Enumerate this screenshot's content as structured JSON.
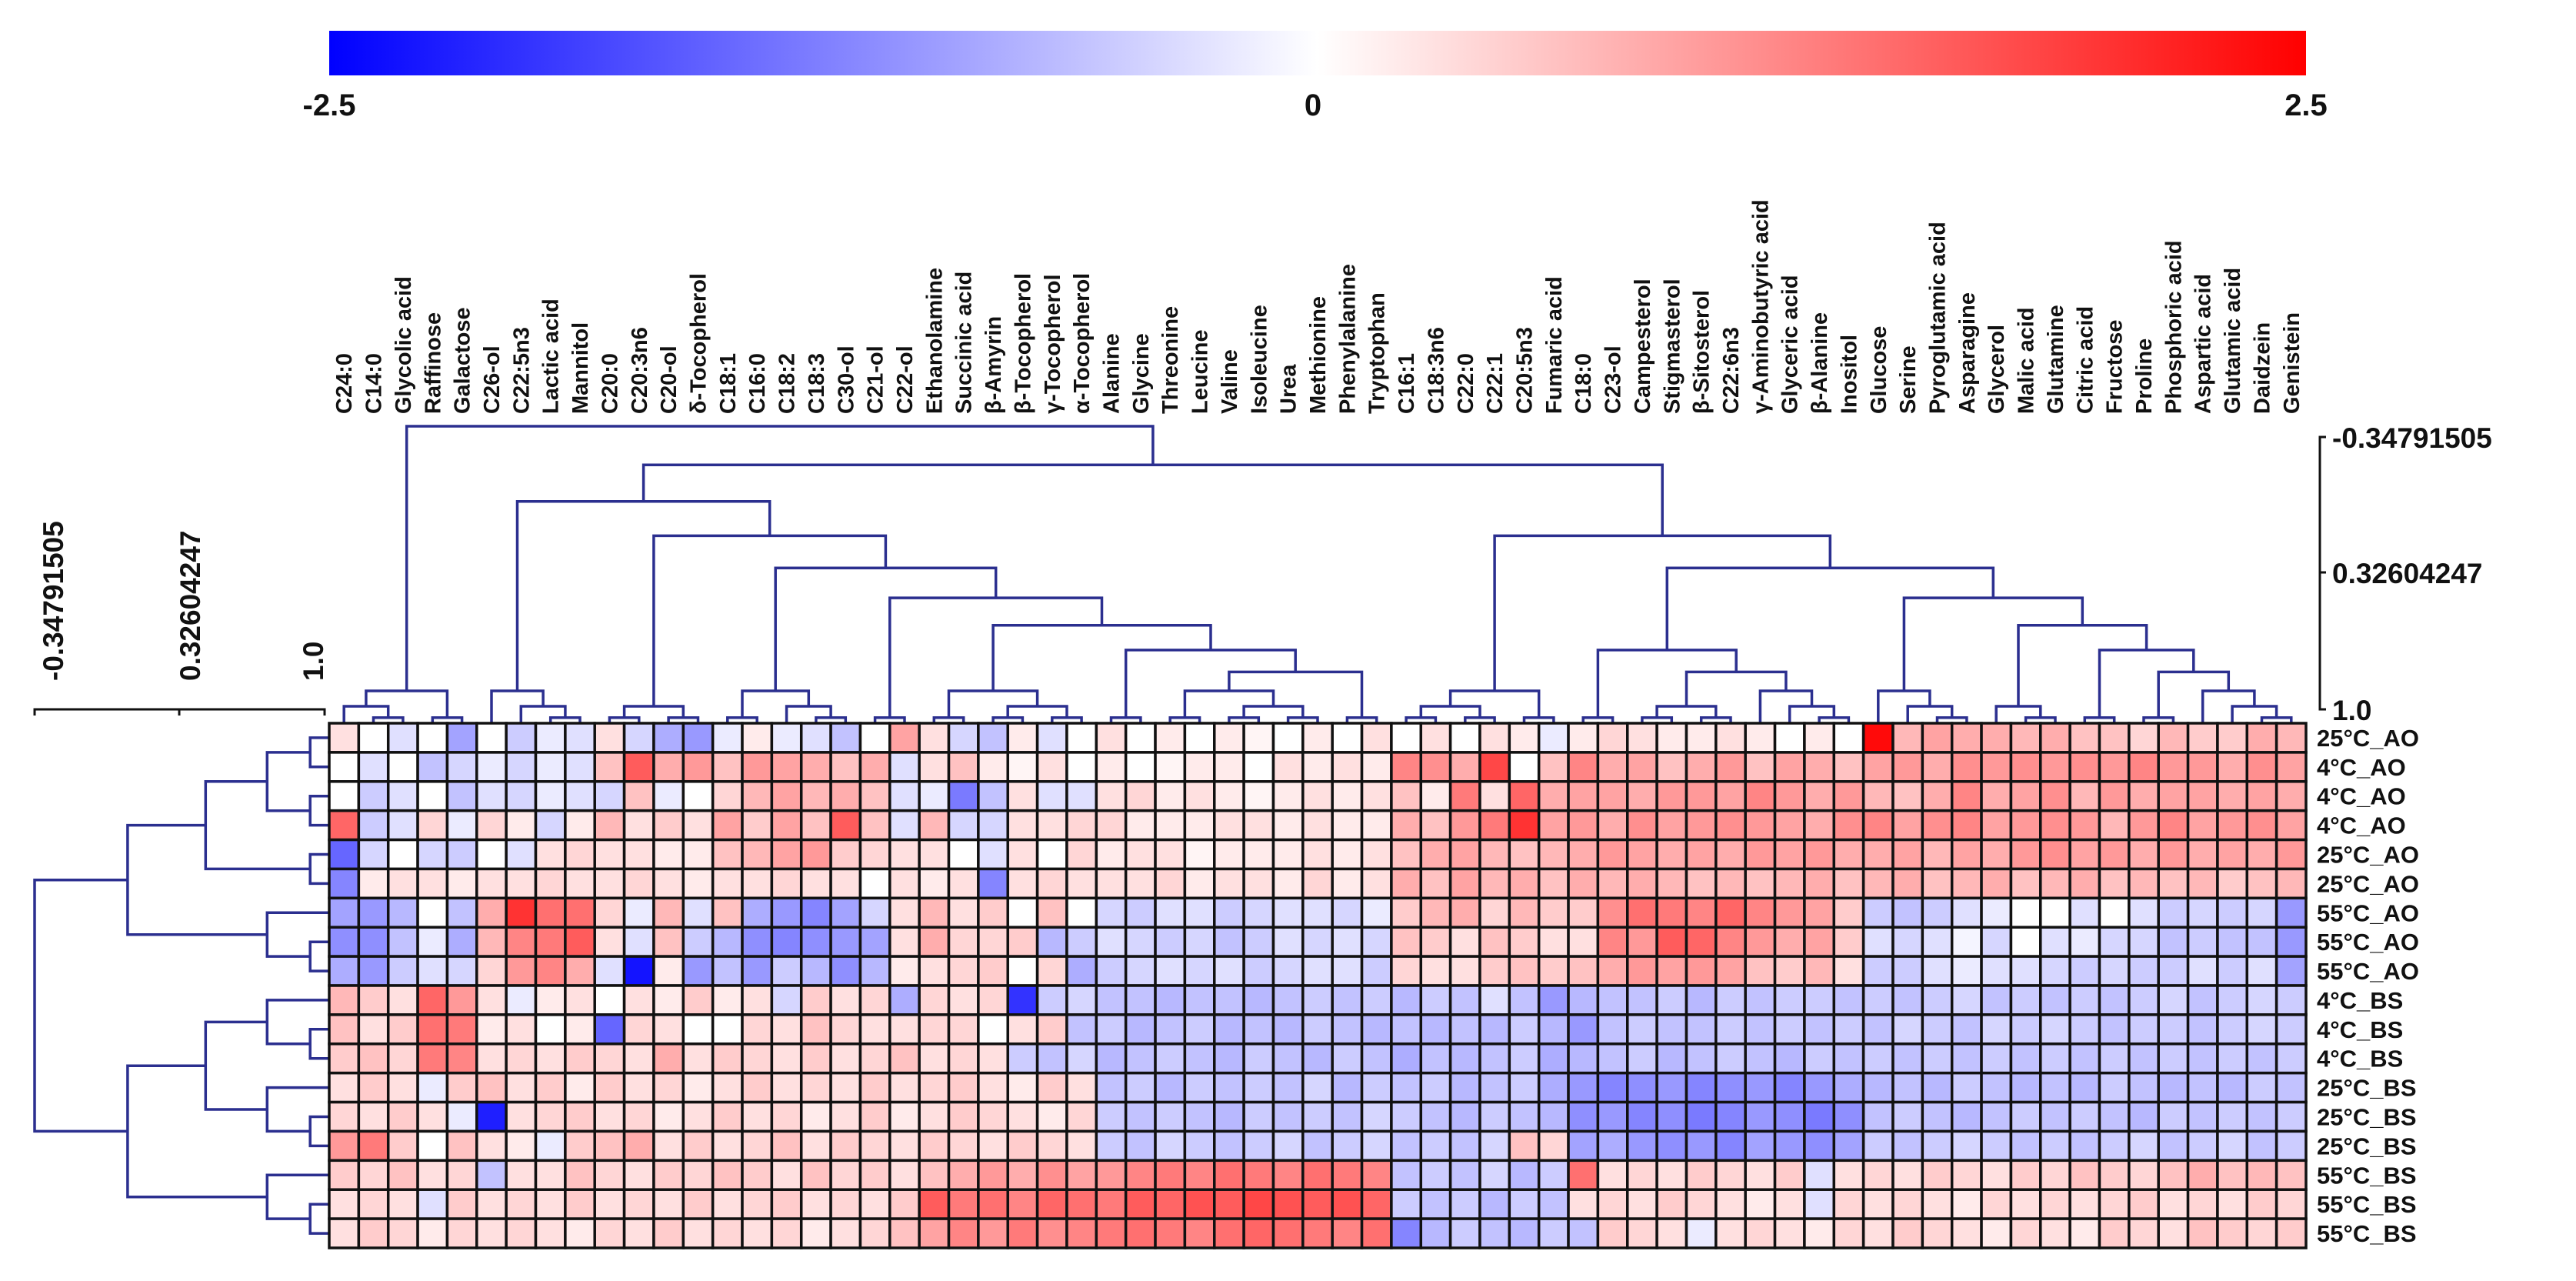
{
  "chart_data": {
    "type": "heatmap",
    "title": "",
    "color_scale": {
      "min": -2.5,
      "mid": 0,
      "max": 2.5,
      "tick_labels": [
        "-2.5",
        "0",
        "2.5"
      ],
      "low_color": "#0000ff",
      "mid_color": "#ffffff",
      "high_color": "#ff0000"
    },
    "columns": [
      "C24:0",
      "C14:0",
      "Glycolic acid",
      "Raffinose",
      "Galactose",
      "C26-ol",
      "C22:5n3",
      "Lactic acid",
      "Mannitol",
      "C20:0",
      "C20:3n6",
      "C20-ol",
      "δ-Tocopherol",
      "C18:1",
      "C16:0",
      "C18:2",
      "C18:3",
      "C30-ol",
      "C21-ol",
      "C22-ol",
      "Ethanolamine",
      "Succinic acid",
      "β-Amyrin",
      "β-Tocopherol",
      "γ-Tocopherol",
      "α-Tocopherol",
      "Alanine",
      "Glycine",
      "Threonine",
      "Leucine",
      "Valine",
      "Isoleucine",
      "Urea",
      "Methionine",
      "Phenylalanine",
      "Tryptophan",
      "C16:1",
      "C18:3n6",
      "C22:0",
      "C22:1",
      "C20:5n3",
      "Fumaric acid",
      "C18:0",
      "C23-ol",
      "Campesterol",
      "Stigmasterol",
      "β-Sitosterol",
      "C22:6n3",
      "γ-Aminobutyric acid",
      "Glyceric acid",
      "β-Alanine",
      "Inositol",
      "Glucose",
      "Serine",
      "Pyroglutamic acid",
      "Asparagine",
      "Glycerol",
      "Malic acid",
      "Glutamine",
      "Citric acid",
      "Fructose",
      "Proline",
      "Phosphoric acid",
      "Aspartic acid",
      "Glutamic acid",
      "Daidzein",
      "Genistein"
    ],
    "rows": [
      "25°C_AO",
      "4°C_AO",
      "4°C_AO",
      "4°C_AO",
      "25°C_AO",
      "25°C_AO",
      "55°C_AO",
      "55°C_AO",
      "55°C_AO",
      "4°C_BS",
      "4°C_BS",
      "4°C_BS",
      "25°C_BS",
      "25°C_BS",
      "25°C_BS",
      "55°C_BS",
      "55°C_BS",
      "55°C_BS"
    ],
    "values": [
      [
        0.3,
        0.0,
        -0.3,
        0.0,
        -0.9,
        0.0,
        -0.5,
        -0.2,
        -0.3,
        0.3,
        -0.4,
        -0.8,
        -1.0,
        -0.2,
        0.2,
        -0.2,
        -0.3,
        -0.6,
        0.0,
        0.9,
        0.3,
        -0.4,
        -0.6,
        0.2,
        -0.3,
        0.0,
        0.3,
        0.0,
        0.2,
        0.0,
        0.2,
        0.1,
        0.0,
        0.2,
        0.0,
        0.3,
        0.0,
        0.3,
        0.0,
        0.3,
        0.2,
        -0.2,
        0.2,
        0.4,
        0.3,
        0.2,
        0.2,
        0.3,
        0.2,
        0.0,
        0.2,
        0.0,
        2.4,
        0.7,
        0.9,
        0.8,
        0.8,
        0.7,
        0.8,
        0.6,
        0.6,
        0.4,
        0.7,
        0.5,
        0.5,
        0.8,
        0.7
      ],
      [
        0.0,
        -0.3,
        0.0,
        -0.6,
        -0.4,
        -0.2,
        -0.4,
        -0.2,
        -0.3,
        0.6,
        1.6,
        0.8,
        1.0,
        0.6,
        1.0,
        0.9,
        0.8,
        0.6,
        0.8,
        -0.3,
        0.3,
        0.6,
        0.2,
        0.1,
        0.3,
        0.0,
        0.2,
        0.0,
        0.1,
        0.2,
        0.2,
        0.0,
        0.3,
        0.2,
        0.3,
        0.2,
        1.2,
        1.1,
        0.8,
        1.8,
        0.0,
        0.6,
        1.2,
        0.8,
        0.9,
        0.6,
        0.8,
        1.0,
        0.6,
        0.9,
        0.8,
        0.6,
        0.9,
        1.0,
        0.8,
        1.1,
        1.0,
        1.1,
        1.0,
        1.1,
        1.0,
        1.2,
        1.0,
        1.0,
        0.8,
        1.1,
        0.9
      ],
      [
        0.0,
        -0.5,
        -0.3,
        0.0,
        -0.6,
        -0.3,
        -0.4,
        -0.2,
        -0.3,
        -0.4,
        0.6,
        -0.2,
        0.0,
        0.4,
        0.7,
        0.9,
        0.7,
        0.8,
        0.6,
        -0.3,
        -0.2,
        -1.3,
        -0.6,
        0.3,
        -0.3,
        -0.3,
        0.3,
        0.4,
        0.2,
        0.3,
        0.2,
        0.1,
        0.2,
        0.3,
        0.2,
        0.3,
        0.6,
        0.2,
        1.3,
        0.3,
        1.5,
        0.8,
        0.9,
        0.9,
        0.8,
        1.0,
        1.0,
        0.9,
        1.2,
        1.0,
        0.8,
        1.0,
        0.7,
        0.6,
        0.8,
        1.2,
        0.8,
        0.9,
        1.1,
        0.7,
        1.0,
        0.8,
        0.9,
        0.9,
        0.8,
        0.9,
        0.8
      ],
      [
        1.5,
        -0.5,
        -0.3,
        0.4,
        -0.2,
        0.4,
        0.2,
        -0.4,
        0.2,
        0.7,
        0.3,
        0.5,
        0.3,
        0.9,
        0.5,
        0.9,
        0.6,
        1.6,
        0.6,
        -0.3,
        0.7,
        -0.4,
        -0.4,
        0.3,
        0.3,
        0.4,
        0.4,
        0.2,
        0.2,
        0.2,
        0.3,
        0.3,
        0.2,
        0.3,
        0.2,
        0.2,
        0.8,
        0.6,
        1.0,
        1.3,
        2.0,
        0.9,
        1.0,
        0.8,
        1.1,
        0.9,
        1.0,
        1.1,
        1.0,
        0.9,
        0.8,
        1.1,
        1.2,
        0.9,
        1.1,
        1.2,
        0.9,
        1.0,
        1.1,
        1.0,
        0.7,
        1.0,
        1.2,
        0.9,
        1.0,
        1.1,
        0.9
      ],
      [
        -1.5,
        -0.4,
        0.0,
        -0.4,
        -0.5,
        0.0,
        -0.3,
        0.3,
        0.4,
        0.3,
        0.3,
        0.2,
        0.2,
        0.6,
        0.7,
        0.9,
        1.0,
        0.5,
        0.4,
        0.3,
        0.3,
        0.0,
        -0.3,
        0.3,
        0.0,
        0.4,
        0.2,
        0.3,
        0.3,
        0.1,
        0.2,
        0.2,
        0.2,
        0.3,
        0.2,
        0.3,
        0.6,
        0.8,
        0.9,
        0.7,
        0.6,
        0.7,
        0.8,
        1.0,
        0.9,
        0.8,
        0.9,
        0.8,
        1.0,
        0.9,
        1.0,
        0.8,
        0.8,
        0.9,
        0.7,
        0.9,
        0.8,
        1.0,
        1.1,
        0.9,
        1.0,
        0.8,
        1.0,
        0.8,
        0.9,
        0.8,
        1.0
      ],
      [
        -1.2,
        0.2,
        0.3,
        0.3,
        0.2,
        0.3,
        0.3,
        0.4,
        0.3,
        0.3,
        0.4,
        0.3,
        0.2,
        0.3,
        0.3,
        0.4,
        0.3,
        0.3,
        0.0,
        0.3,
        0.2,
        0.3,
        -1.2,
        0.3,
        0.4,
        0.3,
        0.3,
        0.3,
        0.4,
        0.2,
        0.3,
        0.3,
        0.2,
        0.4,
        0.2,
        0.3,
        0.8,
        0.6,
        0.9,
        0.7,
        0.8,
        0.6,
        0.8,
        0.7,
        0.8,
        0.7,
        0.6,
        0.7,
        0.6,
        0.7,
        0.8,
        0.6,
        0.7,
        0.8,
        0.6,
        0.7,
        0.8,
        0.6,
        0.7,
        0.8,
        0.6,
        0.7,
        0.6,
        0.7,
        0.5,
        0.6,
        0.7
      ],
      [
        -0.9,
        -1.0,
        -0.7,
        0.0,
        -0.6,
        0.8,
        2.0,
        1.4,
        1.4,
        0.4,
        -0.2,
        0.7,
        -0.3,
        0.6,
        -0.8,
        -1.0,
        -1.2,
        -0.9,
        -0.4,
        0.3,
        0.7,
        0.3,
        0.5,
        0.0,
        0.6,
        0.0,
        -0.4,
        -0.5,
        -0.3,
        -0.3,
        -0.5,
        -0.4,
        -0.3,
        -0.3,
        -0.4,
        -0.2,
        0.5,
        0.7,
        0.8,
        0.4,
        0.7,
        0.5,
        0.5,
        1.1,
        1.4,
        1.3,
        1.2,
        1.5,
        1.2,
        1.0,
        0.9,
        0.5,
        -0.5,
        -0.6,
        -0.5,
        -0.3,
        -0.2,
        0.0,
        0.0,
        -0.3,
        0.0,
        -0.3,
        -0.5,
        -0.4,
        -0.5,
        -0.4,
        -1.0
      ],
      [
        -1.1,
        -1.1,
        -0.6,
        -0.2,
        -0.8,
        0.7,
        1.2,
        1.3,
        1.6,
        0.3,
        -0.3,
        0.6,
        -0.5,
        -0.7,
        -1.1,
        -1.2,
        -1.1,
        -1.0,
        -0.9,
        0.3,
        0.8,
        0.4,
        0.4,
        0.5,
        -0.7,
        -0.5,
        -0.3,
        -0.4,
        -0.5,
        -0.4,
        -0.6,
        -0.5,
        -0.3,
        -0.4,
        -0.3,
        -0.4,
        0.6,
        0.5,
        0.3,
        0.6,
        0.5,
        0.3,
        0.3,
        1.2,
        1.0,
        1.6,
        1.5,
        1.2,
        1.0,
        0.8,
        0.9,
        0.5,
        -0.3,
        -0.4,
        -0.3,
        -0.1,
        -0.4,
        0.0,
        -0.3,
        -0.2,
        -0.4,
        -0.4,
        -0.6,
        -0.5,
        -0.6,
        -0.6,
        -1.0
      ],
      [
        -0.8,
        -1.0,
        -0.5,
        -0.3,
        -0.4,
        0.4,
        1.0,
        1.2,
        0.8,
        -0.3,
        -2.3,
        0.2,
        -1.0,
        -0.6,
        -1.0,
        -0.5,
        -0.7,
        -1.1,
        -0.7,
        0.2,
        0.3,
        0.4,
        0.5,
        0.0,
        0.4,
        -0.8,
        -0.5,
        -0.4,
        -0.3,
        -0.4,
        -0.3,
        -0.5,
        -0.4,
        -0.3,
        -0.3,
        -0.5,
        0.4,
        0.3,
        0.3,
        0.5,
        0.6,
        0.5,
        0.6,
        0.8,
        1.0,
        0.9,
        1.0,
        0.9,
        0.6,
        0.5,
        0.7,
        0.3,
        -0.5,
        -0.5,
        -0.3,
        -0.2,
        -0.3,
        -0.3,
        -0.4,
        -0.5,
        -0.4,
        -0.5,
        -0.5,
        -0.3,
        -0.5,
        -0.3,
        -0.9
      ],
      [
        0.7,
        0.5,
        0.3,
        1.5,
        1.0,
        0.3,
        -0.2,
        0.2,
        0.3,
        0.0,
        0.3,
        0.2,
        0.5,
        0.2,
        0.3,
        -0.4,
        0.5,
        0.3,
        0.4,
        -0.8,
        0.4,
        0.3,
        0.4,
        -2.0,
        -0.5,
        -0.4,
        -0.6,
        -0.6,
        -0.7,
        -0.6,
        -0.6,
        -0.7,
        -0.6,
        -0.5,
        -0.6,
        -0.5,
        -0.7,
        -0.5,
        -0.6,
        -0.3,
        -0.6,
        -1.0,
        -0.7,
        -0.6,
        -0.6,
        -0.5,
        -0.7,
        -0.5,
        -0.6,
        -0.5,
        -0.5,
        -0.6,
        -0.5,
        -0.6,
        -0.5,
        -0.4,
        -0.6,
        -0.5,
        -0.6,
        -0.5,
        -0.6,
        -0.5,
        -0.4,
        -0.6,
        -0.5,
        -0.4,
        -0.5
      ],
      [
        0.6,
        0.3,
        0.5,
        1.4,
        1.3,
        0.2,
        0.3,
        0.0,
        0.2,
        -1.5,
        0.4,
        0.3,
        0.0,
        0.0,
        0.4,
        0.3,
        0.6,
        0.4,
        0.3,
        0.3,
        0.4,
        0.4,
        0.0,
        0.3,
        0.5,
        -0.6,
        -0.5,
        -0.7,
        -0.6,
        -0.5,
        -0.7,
        -0.6,
        -0.7,
        -0.5,
        -0.6,
        -0.7,
        -0.6,
        -0.7,
        -0.6,
        -0.7,
        -0.5,
        -0.7,
        -1.0,
        -0.6,
        -0.5,
        -0.6,
        -0.6,
        -0.5,
        -0.6,
        -0.5,
        -0.6,
        -0.5,
        -0.6,
        -0.4,
        -0.5,
        -0.6,
        -0.4,
        -0.5,
        -0.4,
        -0.5,
        -0.6,
        -0.5,
        -0.5,
        -0.6,
        -0.5,
        -0.4,
        -0.5
      ],
      [
        0.5,
        0.6,
        0.4,
        1.3,
        1.2,
        0.3,
        0.4,
        0.3,
        0.5,
        0.4,
        0.3,
        0.8,
        0.3,
        0.5,
        0.4,
        0.3,
        0.5,
        0.3,
        0.4,
        0.6,
        0.3,
        0.4,
        0.3,
        -0.5,
        -0.6,
        -0.4,
        -0.7,
        -0.6,
        -0.5,
        -0.6,
        -0.7,
        -0.5,
        -0.6,
        -0.7,
        -0.5,
        -0.6,
        -0.8,
        -0.6,
        -0.7,
        -0.6,
        -0.5,
        -0.8,
        -0.7,
        -0.6,
        -0.5,
        -0.7,
        -0.6,
        -0.5,
        -0.6,
        -0.7,
        -0.5,
        -0.6,
        -0.5,
        -0.6,
        -0.5,
        -0.6,
        -0.5,
        -0.6,
        -0.5,
        -0.6,
        -0.5,
        -0.6,
        -0.5,
        -0.6,
        -0.5,
        -0.6,
        -0.5
      ],
      [
        0.3,
        0.5,
        0.3,
        -0.2,
        0.5,
        0.6,
        0.3,
        0.5,
        0.2,
        0.5,
        0.3,
        0.4,
        0.2,
        0.3,
        0.5,
        0.3,
        0.4,
        0.3,
        0.5,
        0.3,
        0.4,
        0.5,
        0.3,
        0.2,
        0.5,
        0.3,
        -0.6,
        -0.5,
        -0.7,
        -0.5,
        -0.6,
        -0.5,
        -0.6,
        -0.4,
        -0.7,
        -0.5,
        -0.6,
        -0.5,
        -0.7,
        -0.6,
        -0.5,
        -0.8,
        -1.0,
        -1.2,
        -1.1,
        -1.0,
        -1.2,
        -1.1,
        -1.0,
        -1.2,
        -1.0,
        -0.8,
        -0.7,
        -0.6,
        -0.7,
        -0.5,
        -0.6,
        -0.7,
        -0.6,
        -0.7,
        -0.5,
        -0.6,
        -0.7,
        -0.6,
        -0.7,
        -0.5,
        -0.6
      ],
      [
        0.4,
        0.3,
        0.5,
        0.3,
        -0.2,
        -2.2,
        0.3,
        0.4,
        0.5,
        0.3,
        0.4,
        0.2,
        0.3,
        0.5,
        0.3,
        0.4,
        0.2,
        0.3,
        0.5,
        0.2,
        0.3,
        0.5,
        0.4,
        0.3,
        0.2,
        0.4,
        -0.5,
        -0.6,
        -0.5,
        -0.6,
        -0.7,
        -0.5,
        -0.6,
        -0.5,
        -0.6,
        -0.4,
        -0.5,
        -0.6,
        -0.7,
        -0.5,
        -0.6,
        -0.7,
        -1.1,
        -1.0,
        -1.2,
        -1.1,
        -1.3,
        -1.2,
        -1.0,
        -1.1,
        -1.3,
        -1.1,
        -0.6,
        -0.5,
        -0.6,
        -0.7,
        -0.6,
        -0.5,
        -0.6,
        -0.5,
        -0.6,
        -0.7,
        -0.5,
        -0.6,
        -0.5,
        -0.6,
        -0.5
      ],
      [
        1.0,
        1.3,
        0.5,
        0.0,
        0.6,
        0.3,
        0.2,
        -0.2,
        0.5,
        0.6,
        0.8,
        0.3,
        0.5,
        0.3,
        0.4,
        0.6,
        0.3,
        0.5,
        0.4,
        0.3,
        0.5,
        0.4,
        0.3,
        0.5,
        0.4,
        0.3,
        -0.5,
        -0.6,
        -0.4,
        -0.5,
        -0.6,
        -0.5,
        -0.4,
        -0.6,
        -0.5,
        -0.4,
        -0.6,
        -0.5,
        -0.6,
        -0.4,
        0.6,
        0.4,
        -0.9,
        -0.8,
        -1.0,
        -1.1,
        -1.0,
        -1.2,
        -0.9,
        -1.0,
        -1.1,
        -0.9,
        -0.5,
        -0.6,
        -0.5,
        -0.4,
        -0.5,
        -0.6,
        -0.5,
        -0.6,
        -0.5,
        -0.4,
        -0.6,
        -0.5,
        -0.4,
        -0.6,
        -0.5
      ],
      [
        0.5,
        0.4,
        0.6,
        0.3,
        0.4,
        -0.6,
        0.3,
        0.3,
        0.6,
        0.4,
        0.3,
        0.5,
        0.4,
        0.6,
        0.5,
        0.3,
        0.6,
        0.4,
        0.5,
        0.3,
        0.6,
        0.8,
        1.0,
        0.8,
        1.1,
        0.9,
        1.0,
        1.2,
        1.3,
        1.2,
        1.4,
        1.3,
        1.2,
        1.4,
        1.3,
        1.2,
        -0.6,
        -0.5,
        -0.6,
        -0.4,
        -0.7,
        -0.5,
        1.4,
        0.3,
        0.4,
        0.3,
        0.5,
        0.4,
        0.3,
        0.5,
        -0.3,
        0.3,
        0.4,
        0.3,
        0.5,
        0.4,
        0.3,
        0.5,
        0.4,
        0.6,
        0.5,
        0.4,
        0.6,
        0.8,
        0.6,
        0.7,
        0.6
      ],
      [
        0.3,
        0.4,
        0.3,
        -0.3,
        0.5,
        0.3,
        0.4,
        0.3,
        0.5,
        0.3,
        0.4,
        0.3,
        0.5,
        0.3,
        0.4,
        0.5,
        0.3,
        0.4,
        0.3,
        0.5,
        1.6,
        1.3,
        1.4,
        1.2,
        1.5,
        1.4,
        1.3,
        1.6,
        1.5,
        1.7,
        1.6,
        1.8,
        1.7,
        1.6,
        1.7,
        1.5,
        -0.5,
        -0.6,
        -0.5,
        -0.7,
        -0.5,
        -0.6,
        0.3,
        0.4,
        0.3,
        0.5,
        0.4,
        0.3,
        0.2,
        0.3,
        -0.3,
        0.4,
        0.3,
        0.4,
        0.3,
        0.2,
        0.4,
        0.3,
        0.4,
        0.3,
        0.4,
        0.5,
        0.3,
        0.4,
        0.3,
        0.5,
        0.4
      ],
      [
        0.3,
        0.5,
        0.4,
        0.2,
        0.4,
        0.3,
        0.4,
        0.3,
        0.2,
        0.4,
        0.3,
        0.5,
        0.3,
        0.4,
        0.3,
        0.4,
        0.2,
        0.3,
        0.4,
        0.6,
        0.9,
        1.2,
        1.0,
        1.3,
        1.1,
        1.2,
        1.3,
        1.4,
        1.3,
        1.2,
        1.4,
        1.5,
        1.4,
        1.3,
        1.2,
        1.4,
        -1.2,
        -0.7,
        -0.5,
        -0.6,
        -0.7,
        -0.5,
        -0.6,
        0.5,
        0.4,
        0.3,
        -0.2,
        0.3,
        0.4,
        0.3,
        0.2,
        0.4,
        0.3,
        0.5,
        0.4,
        0.3,
        0.2,
        0.4,
        0.3,
        0.2,
        0.5,
        0.4,
        0.3,
        0.6,
        0.5,
        0.4,
        0.5
      ]
    ],
    "dendrogram_axis_labels": [
      "-0.34791505",
      "0.32604247",
      "1.0"
    ],
    "row_dendrogram_axis_labels": [
      "-0.34791505",
      "0.32604247",
      "1.0"
    ]
  }
}
